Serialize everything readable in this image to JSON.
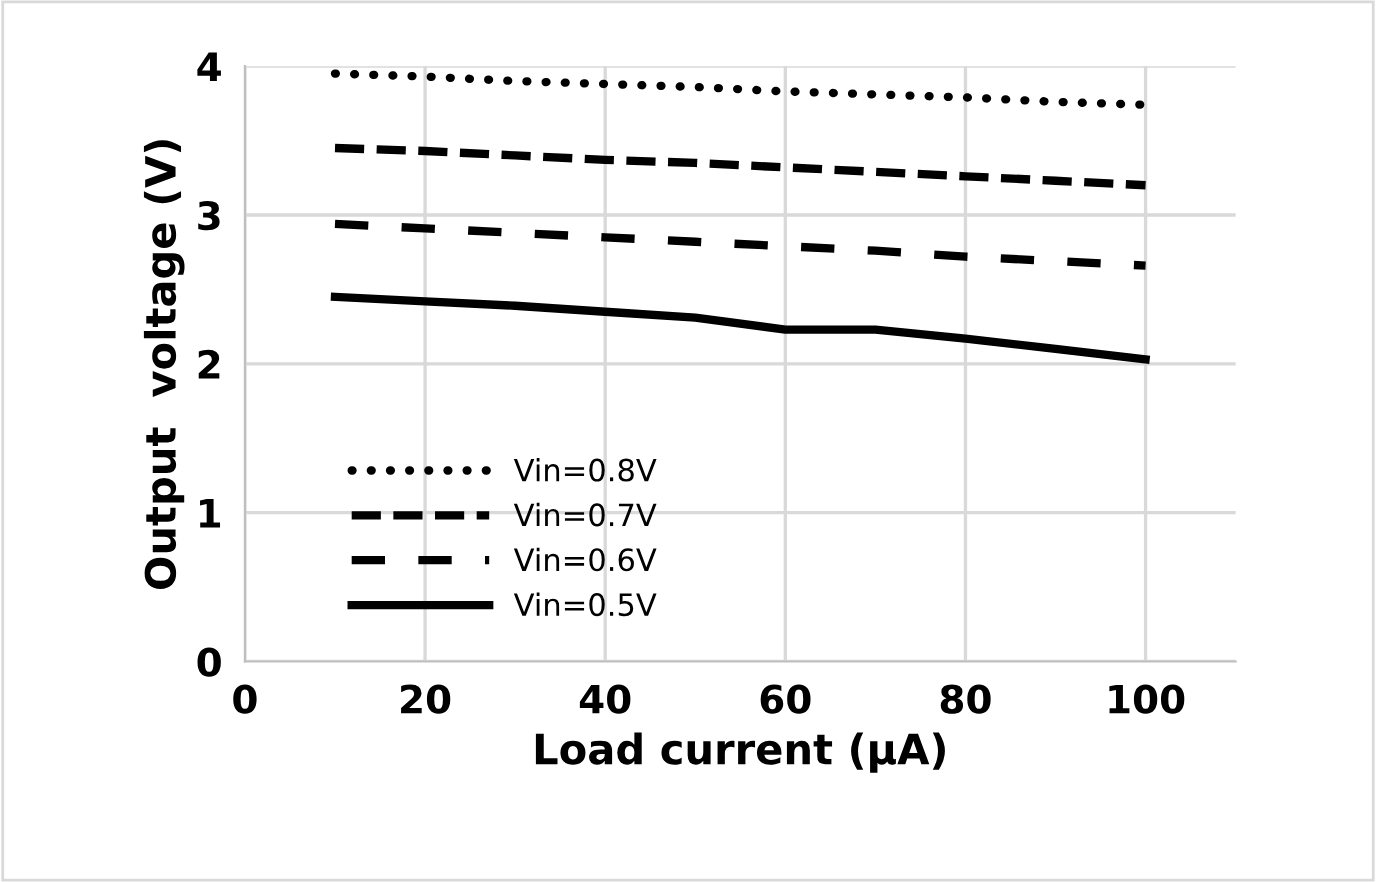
{
  "chart_data": {
    "type": "line",
    "xlabel": "Load current (μA)",
    "ylabel": "Output  voltage (V)",
    "x": [
      10,
      20,
      30,
      40,
      50,
      60,
      70,
      80,
      90,
      100
    ],
    "series": [
      {
        "name": "Vin=0.8V",
        "color": "#000000",
        "line_style": "dotted",
        "values": [
          3.95,
          3.93,
          3.9,
          3.88,
          3.86,
          3.83,
          3.81,
          3.79,
          3.76,
          3.74
        ]
      },
      {
        "name": "Vin=0.7V",
        "color": "#000000",
        "line_style": "dashed",
        "values": [
          3.45,
          3.43,
          3.4,
          3.37,
          3.35,
          3.32,
          3.29,
          3.26,
          3.23,
          3.2
        ]
      },
      {
        "name": "Vin=0.6V",
        "color": "#000000",
        "line_style": "longdash",
        "values": [
          2.94,
          2.91,
          2.88,
          2.85,
          2.82,
          2.79,
          2.76,
          2.72,
          2.69,
          2.66
        ]
      },
      {
        "name": "Vin=0.5V",
        "color": "#000000",
        "line_style": "solid",
        "values": [
          2.45,
          2.42,
          2.39,
          2.35,
          2.31,
          2.23,
          2.23,
          2.17,
          2.1,
          2.03
        ]
      }
    ],
    "xlim": [
      0,
      110
    ],
    "xticks": [
      0,
      20,
      40,
      60,
      80,
      100
    ],
    "ylim": [
      0,
      4
    ],
    "yticks": [
      0,
      1,
      2,
      3,
      4
    ],
    "grid": true,
    "legend": "bottom left"
  }
}
